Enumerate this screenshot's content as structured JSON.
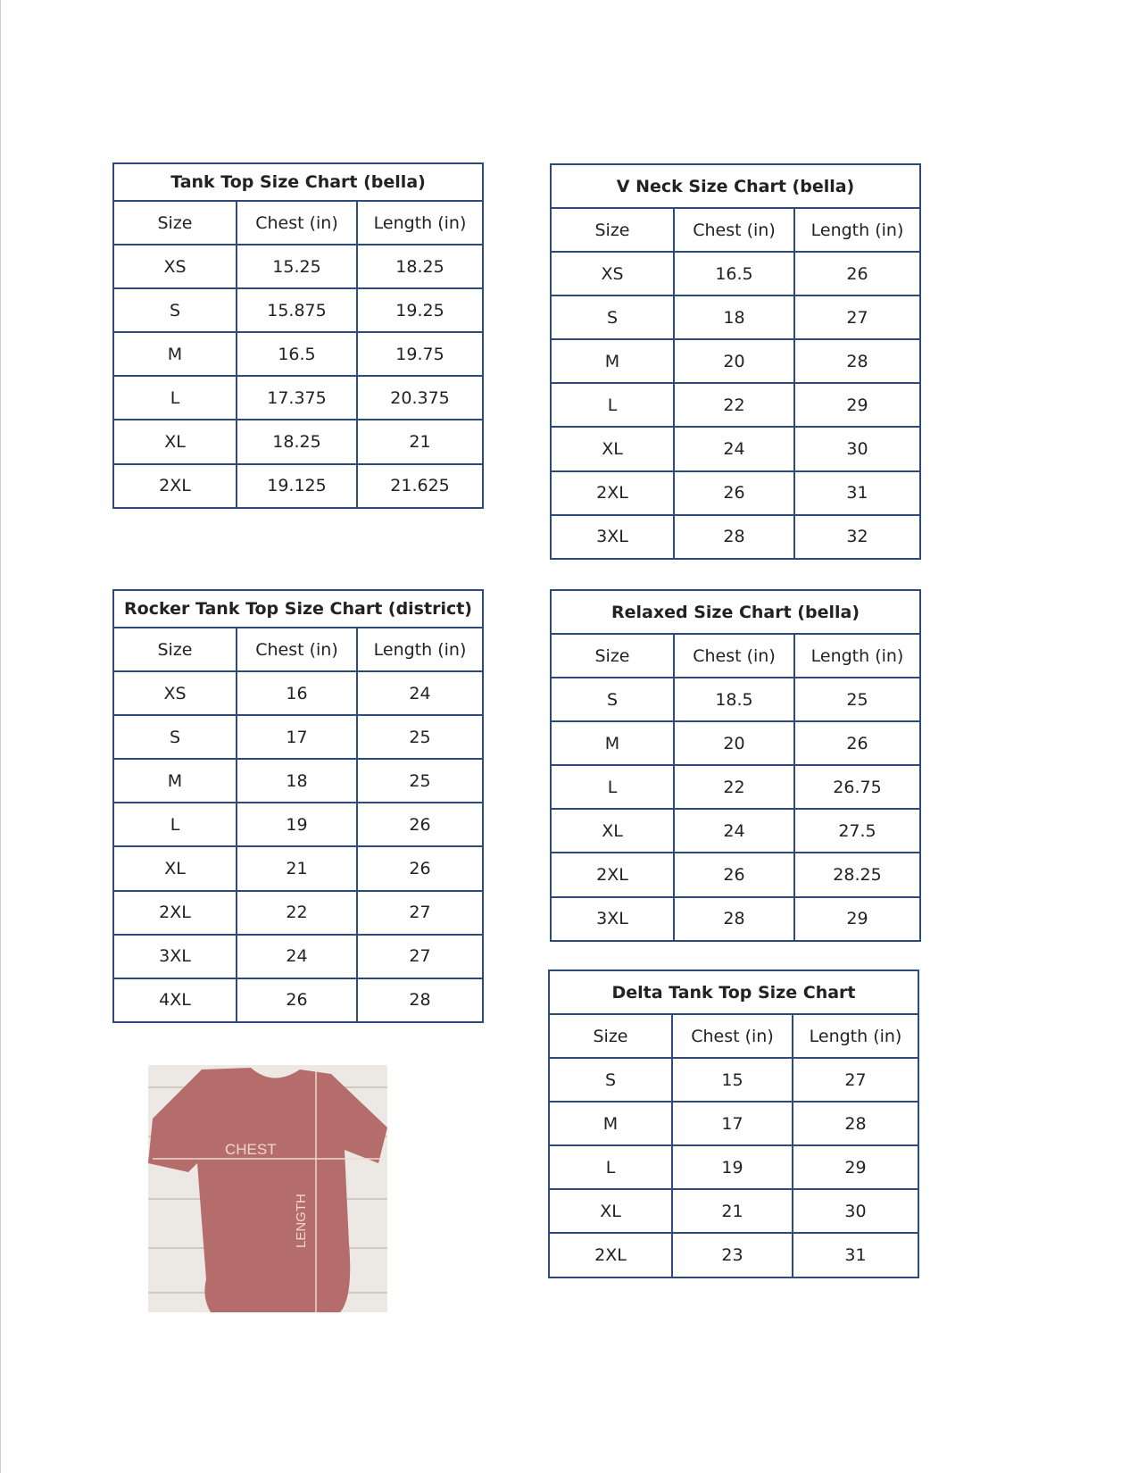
{
  "charts": [
    {
      "title": "Tank Top Size Chart  (bella)",
      "headers": [
        "Size",
        "Chest (in)",
        "Length (in)"
      ],
      "rows": [
        [
          "XS",
          "15.25",
          "18.25"
        ],
        [
          "S",
          "15.875",
          "19.25"
        ],
        [
          "M",
          "16.5",
          "19.75"
        ],
        [
          "L",
          "17.375",
          "20.375"
        ],
        [
          "XL",
          "18.25",
          "21"
        ],
        [
          "2XL",
          "19.125",
          "21.625"
        ]
      ]
    },
    {
      "title": "V Neck Size Chart  (bella)",
      "headers": [
        "Size",
        "Chest (in)",
        "Length (in)"
      ],
      "rows": [
        [
          "XS",
          "16.5",
          "26"
        ],
        [
          "S",
          "18",
          "27"
        ],
        [
          "M",
          "20",
          "28"
        ],
        [
          "L",
          "22",
          "29"
        ],
        [
          "XL",
          "24",
          "30"
        ],
        [
          "2XL",
          "26",
          "31"
        ],
        [
          "3XL",
          "28",
          "32"
        ]
      ]
    },
    {
      "title": "Rocker Tank Top Size Chart (district)",
      "headers": [
        "Size",
        "Chest (in)",
        "Length (in)"
      ],
      "rows": [
        [
          "XS",
          "16",
          "24"
        ],
        [
          "S",
          "17",
          "25"
        ],
        [
          "M",
          "18",
          "25"
        ],
        [
          "L",
          "19",
          "26"
        ],
        [
          "XL",
          "21",
          "26"
        ],
        [
          "2XL",
          "22",
          "27"
        ],
        [
          "3XL",
          "24",
          "27"
        ],
        [
          "4XL",
          "26",
          "28"
        ]
      ]
    },
    {
      "title": "Relaxed Size Chart (bella)",
      "headers": [
        "Size",
        "Chest (in)",
        "Length (in)"
      ],
      "rows": [
        [
          "S",
          "18.5",
          "25"
        ],
        [
          "M",
          "20",
          "26"
        ],
        [
          "L",
          "22",
          "26.75"
        ],
        [
          "XL",
          "24",
          "27.5"
        ],
        [
          "2XL",
          "26",
          "28.25"
        ],
        [
          "3XL",
          "28",
          "29"
        ]
      ]
    },
    {
      "title": "Delta Tank Top Size Chart",
      "headers": [
        "Size",
        "Chest (in)",
        "Length (in)"
      ],
      "rows": [
        [
          "S",
          "15",
          "27"
        ],
        [
          "M",
          "17",
          "28"
        ],
        [
          "L",
          "19",
          "29"
        ],
        [
          "XL",
          "21",
          "30"
        ],
        [
          "2XL",
          "23",
          "31"
        ]
      ]
    }
  ],
  "shirt_image": {
    "chest_label": "CHEST",
    "length_label": "LENGTH"
  },
  "colors": {
    "border": "#2e4a7a",
    "shirt": "#b56d6c"
  }
}
